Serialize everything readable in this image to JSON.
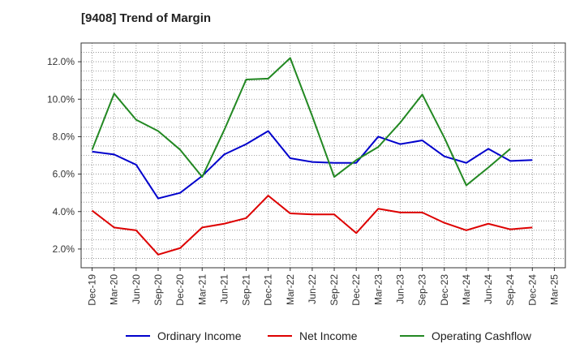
{
  "chart_data": {
    "type": "line",
    "title": "[9408]  Trend of Margin",
    "xlabel": "",
    "ylabel": "",
    "x": [
      "Dec-19",
      "Mar-20",
      "Jun-20",
      "Sep-20",
      "Dec-20",
      "Mar-21",
      "Jun-21",
      "Sep-21",
      "Dec-21",
      "Mar-22",
      "Jun-22",
      "Sep-22",
      "Dec-22",
      "Mar-23",
      "Jun-23",
      "Sep-23",
      "Dec-23",
      "Mar-24",
      "Jun-24",
      "Sep-24",
      "Dec-24",
      "Mar-25"
    ],
    "ylim": [
      1.0,
      13.0
    ],
    "yticks": [
      2.0,
      4.0,
      6.0,
      8.0,
      10.0,
      12.0
    ],
    "ytick_labels": [
      "2.0%",
      "4.0%",
      "6.0%",
      "8.0%",
      "10.0%",
      "12.0%"
    ],
    "grid": true,
    "legend_position": "bottom",
    "series": [
      {
        "name": "Ordinary Income",
        "color": "#0000cc",
        "values": [
          7.2,
          7.05,
          6.5,
          4.7,
          5.0,
          5.9,
          7.05,
          7.6,
          8.3,
          6.85,
          6.65,
          6.6,
          6.6,
          8.0,
          7.6,
          7.8,
          6.95,
          6.6,
          7.35,
          6.7,
          6.75,
          null
        ]
      },
      {
        "name": "Net Income",
        "color": "#dd0000",
        "values": [
          4.05,
          3.15,
          3.0,
          1.7,
          2.05,
          3.15,
          3.35,
          3.65,
          4.85,
          3.9,
          3.85,
          3.85,
          2.85,
          4.15,
          3.95,
          3.95,
          3.4,
          3.0,
          3.35,
          3.05,
          3.15,
          null
        ]
      },
      {
        "name": "Operating Cashflow",
        "color": "#228822",
        "values": [
          7.3,
          10.3,
          8.9,
          8.3,
          7.3,
          5.85,
          8.35,
          11.05,
          11.1,
          12.2,
          9.1,
          5.85,
          6.75,
          7.45,
          8.75,
          10.25,
          7.95,
          5.4,
          6.35,
          7.35,
          null,
          null
        ]
      }
    ]
  }
}
